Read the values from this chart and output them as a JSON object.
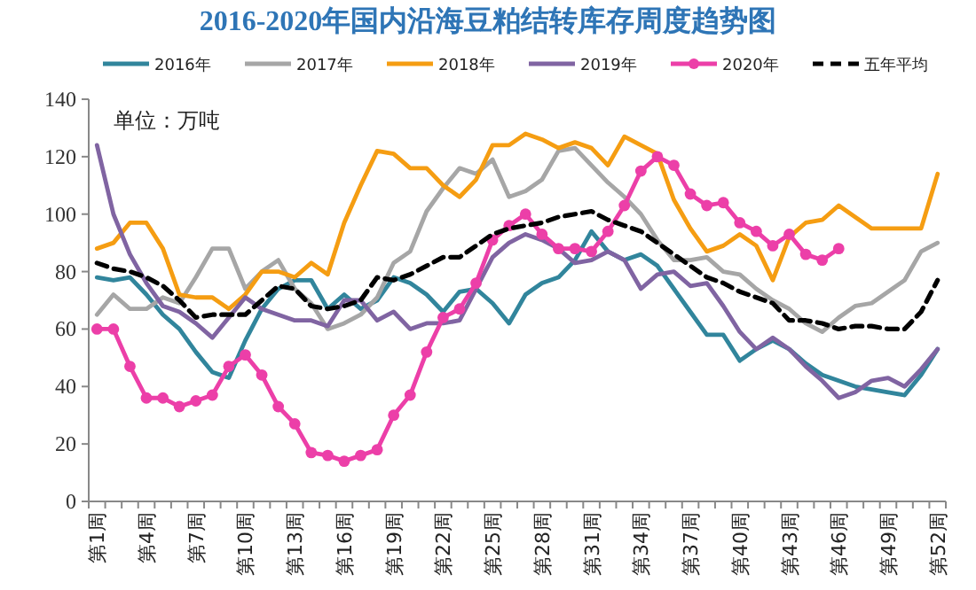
{
  "chart_data": {
    "type": "line",
    "title": "2016-2020年国内沿海豆粕结转库存周度趋势图",
    "annotations": [
      "单位：万吨"
    ],
    "categories": [
      "第1周",
      null,
      null,
      "第4周",
      null,
      null,
      "第7周",
      null,
      null,
      "第10周",
      null,
      null,
      "第13周",
      null,
      null,
      "第16周",
      null,
      null,
      "第19周",
      null,
      null,
      "第22周",
      null,
      null,
      "第25周",
      null,
      null,
      "第28周",
      null,
      null,
      "第31周",
      null,
      null,
      "第34周",
      null,
      null,
      "第37周",
      null,
      null,
      "第40周",
      null,
      null,
      "第43周",
      null,
      null,
      "第46周",
      null,
      null,
      "第49周",
      null,
      null,
      "第52周"
    ],
    "ylim": [
      0,
      140
    ],
    "yticks": [
      0,
      20,
      40,
      60,
      80,
      100,
      120,
      140
    ],
    "grid": false,
    "legend": "top",
    "marker": "none",
    "line_style": "solid",
    "series": [
      {
        "name": "2016年",
        "color": "#31859c",
        "values": [
          78,
          77,
          78,
          72,
          65,
          60,
          52,
          45,
          43,
          56,
          67,
          74,
          77,
          77,
          67,
          72,
          67,
          70,
          78,
          76,
          72,
          66,
          73,
          74,
          69,
          62,
          72,
          76,
          78,
          84,
          94,
          87,
          84,
          86,
          82,
          74,
          66,
          58,
          58,
          49,
          53,
          56,
          53,
          48,
          44,
          42,
          40,
          39,
          38,
          37,
          44,
          53
        ]
      },
      {
        "name": "2017年",
        "color": "#a6a6a6",
        "values": [
          65,
          72,
          67,
          67,
          71,
          69,
          78,
          88,
          88,
          74,
          80,
          84,
          74,
          69,
          60,
          62,
          65,
          71,
          83,
          87,
          101,
          109,
          116,
          114,
          119,
          106,
          108,
          112,
          122,
          123,
          117,
          111,
          106,
          100,
          91,
          84,
          84,
          85,
          80,
          79,
          74,
          70,
          67,
          62,
          59,
          64,
          68,
          69,
          73,
          77,
          87,
          90
        ]
      },
      {
        "name": "2018年",
        "color": "#f59d12",
        "values": [
          88,
          90,
          97,
          97,
          88,
          72,
          71,
          71,
          67,
          72,
          80,
          80,
          78,
          83,
          79,
          97,
          110,
          122,
          121,
          116,
          116,
          110,
          106,
          112,
          124,
          124,
          128,
          126,
          123,
          125,
          123,
          117,
          127,
          124,
          121,
          105,
          95,
          87,
          89,
          93,
          89,
          77,
          92,
          97,
          98,
          103,
          99,
          95,
          95,
          95,
          95,
          114
        ]
      },
      {
        "name": "2019年",
        "color": "#8064a2",
        "values": [
          124,
          100,
          86,
          76,
          68,
          66,
          62,
          57,
          64,
          71,
          67,
          65,
          63,
          63,
          61,
          70,
          70,
          63,
          66,
          60,
          62,
          62,
          63,
          74,
          85,
          90,
          93,
          91,
          88,
          83,
          84,
          87,
          84,
          74,
          79,
          80,
          75,
          76,
          68,
          59,
          53,
          57,
          53,
          47,
          42,
          36,
          38,
          42,
          43,
          40,
          46,
          53
        ]
      },
      {
        "name": "2020年",
        "color": "#ec3fa8",
        "marker": "circle",
        "values": [
          60,
          60,
          47,
          36,
          36,
          33,
          35,
          37,
          47,
          51,
          44,
          33,
          27,
          17,
          16,
          14,
          16,
          18,
          30,
          37,
          52,
          64,
          67,
          76,
          91,
          96,
          100,
          93,
          88,
          88,
          87,
          94,
          103,
          115,
          120,
          117,
          107,
          103,
          104,
          97,
          94,
          89,
          93,
          86,
          84,
          88,
          null,
          null,
          null,
          null,
          null,
          null
        ]
      },
      {
        "name": "五年平均",
        "color": "#000000",
        "line_style": "dashed",
        "values": [
          83,
          81,
          80,
          78,
          75,
          70,
          64,
          65,
          65,
          65,
          70,
          75,
          74,
          68,
          67,
          68,
          70,
          78,
          77,
          79,
          82,
          85,
          85,
          89,
          93,
          95,
          96,
          97,
          99,
          100,
          101,
          98,
          96,
          94,
          90,
          86,
          82,
          78,
          76,
          73,
          71,
          69,
          63,
          63,
          62,
          60,
          61,
          61,
          60,
          60,
          66,
          77
        ]
      }
    ]
  }
}
